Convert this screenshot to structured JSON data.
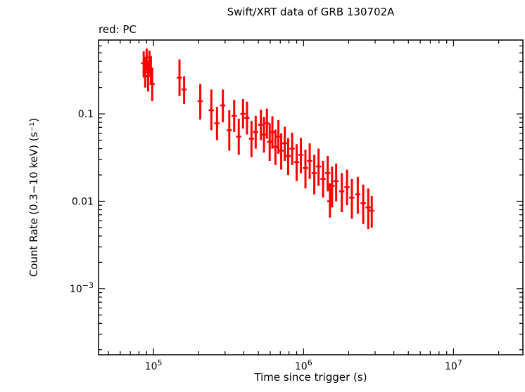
{
  "chart_data": {
    "type": "scatter",
    "title": "Swift/XRT data of GRB 130702A",
    "legend": "red: PC",
    "xlabel": "Time since trigger (s)",
    "ylabel": "Count Rate (0.3−10 keV) (s⁻¹)",
    "xscale": "log",
    "yscale": "log",
    "grid": false,
    "xlim": [
      43000,
      29000000
    ],
    "ylim": [
      0.000175,
      0.7
    ],
    "x_ticks": [
      {
        "v": 100000,
        "base": "10",
        "exp": "5"
      },
      {
        "v": 1000000,
        "base": "10",
        "exp": "6"
      },
      {
        "v": 10000000,
        "base": "10",
        "exp": "7"
      }
    ],
    "y_ticks": [
      {
        "v": 0.1,
        "label": "0.1"
      },
      {
        "v": 0.01,
        "label": "0.01"
      },
      {
        "v": 0.001,
        "base": "10",
        "exp": "−3"
      }
    ],
    "series": [
      {
        "name": "PC",
        "color": "#ff0000",
        "marker": "error-bar",
        "points": [
          [
            86000,
            0.38,
            0.26,
            0.52
          ],
          [
            88000,
            0.3,
            0.2,
            0.44
          ],
          [
            90000,
            0.44,
            0.31,
            0.56
          ],
          [
            92000,
            0.27,
            0.18,
            0.39
          ],
          [
            94000,
            0.4,
            0.28,
            0.53
          ],
          [
            96000,
            0.33,
            0.22,
            0.46
          ],
          [
            98000,
            0.22,
            0.14,
            0.33
          ],
          [
            149000,
            0.26,
            0.16,
            0.42
          ],
          [
            160000,
            0.19,
            0.13,
            0.27
          ],
          [
            205000,
            0.14,
            0.086,
            0.22
          ],
          [
            243000,
            0.11,
            0.065,
            0.19
          ],
          [
            265000,
            0.078,
            0.05,
            0.12
          ],
          [
            290000,
            0.125,
            0.08,
            0.19
          ],
          [
            320000,
            0.065,
            0.038,
            0.11
          ],
          [
            345000,
            0.095,
            0.062,
            0.145
          ],
          [
            370000,
            0.055,
            0.034,
            0.088
          ],
          [
            395000,
            0.1,
            0.068,
            0.148
          ],
          [
            420000,
            0.09,
            0.058,
            0.138
          ],
          [
            450000,
            0.052,
            0.032,
            0.083
          ],
          [
            480000,
            0.062,
            0.04,
            0.095
          ],
          [
            520000,
            0.075,
            0.05,
            0.112
          ],
          [
            545000,
            0.058,
            0.036,
            0.092
          ],
          [
            570000,
            0.078,
            0.052,
            0.115
          ],
          [
            595000,
            0.048,
            0.029,
            0.078
          ],
          [
            620000,
            0.062,
            0.04,
            0.094
          ],
          [
            650000,
            0.042,
            0.026,
            0.066
          ],
          [
            680000,
            0.055,
            0.035,
            0.085
          ],
          [
            710000,
            0.038,
            0.023,
            0.06
          ],
          [
            750000,
            0.046,
            0.029,
            0.071
          ],
          [
            790000,
            0.033,
            0.02,
            0.053
          ],
          [
            840000,
            0.04,
            0.026,
            0.061
          ],
          [
            900000,
            0.028,
            0.017,
            0.045
          ],
          [
            960000,
            0.034,
            0.021,
            0.053
          ],
          [
            1030000,
            0.024,
            0.014,
            0.039
          ],
          [
            1100000,
            0.029,
            0.018,
            0.046
          ],
          [
            1180000,
            0.021,
            0.012,
            0.034
          ],
          [
            1260000,
            0.025,
            0.015,
            0.04
          ],
          [
            1350000,
            0.018,
            0.011,
            0.029
          ],
          [
            1450000,
            0.021,
            0.013,
            0.033
          ],
          [
            1500000,
            0.01,
            0.0065,
            0.016
          ],
          [
            1550000,
            0.015,
            0.0085,
            0.025
          ],
          [
            1650000,
            0.017,
            0.01,
            0.027
          ],
          [
            1800000,
            0.013,
            0.0075,
            0.021
          ],
          [
            1950000,
            0.0145,
            0.009,
            0.023
          ],
          [
            2100000,
            0.011,
            0.0063,
            0.018
          ],
          [
            2300000,
            0.012,
            0.0072,
            0.019
          ],
          [
            2500000,
            0.0095,
            0.0055,
            0.0155
          ],
          [
            2700000,
            0.0085,
            0.0048,
            0.014
          ],
          [
            2850000,
            0.0078,
            0.005,
            0.0115
          ]
        ]
      }
    ]
  }
}
